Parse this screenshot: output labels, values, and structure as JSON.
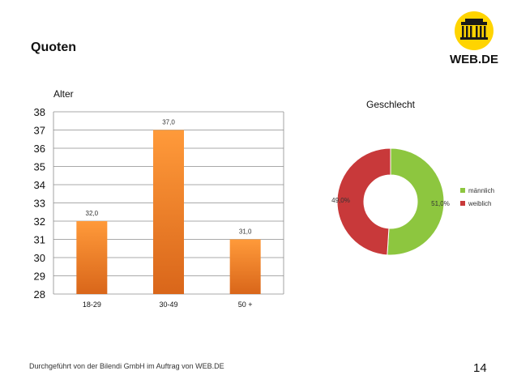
{
  "slide": {
    "title": "Quoten",
    "footer": "Durchgeführt von der Bilendi GmbH im Auftrag von WEB.DE",
    "page_number": "14",
    "brand": "WEB.DE"
  },
  "colors": {
    "bar_top": "#ff9a3a",
    "bar_bottom": "#d9661a",
    "male": "#8dc63f",
    "female": "#c8393a"
  },
  "chart_data": [
    {
      "type": "bar",
      "title": "Alter",
      "xlabel": "",
      "ylabel": "",
      "categories": [
        "18-29",
        "30-49",
        "50 +"
      ],
      "values": [
        32.0,
        37.0,
        31.0
      ],
      "value_labels": [
        "32,0",
        "37,0",
        "31,0"
      ],
      "ylim": [
        28,
        38
      ],
      "yticks": [
        28,
        29,
        30,
        31,
        32,
        33,
        34,
        35,
        36,
        37,
        38
      ],
      "grid": true
    },
    {
      "type": "pie",
      "style": "doughnut",
      "title": "Geschlecht",
      "categories": [
        "männlich",
        "weiblich"
      ],
      "values": [
        51.0,
        49.0
      ],
      "value_labels": [
        "51,0%",
        "49,0%"
      ],
      "legend": "right"
    }
  ]
}
